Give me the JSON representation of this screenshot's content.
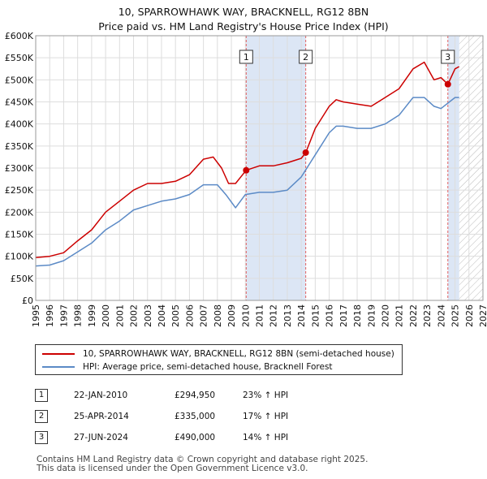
{
  "title_line1": "10, SPARROWHAWK WAY, BRACKNELL, RG12 8BN",
  "title_line2": "Price paid vs. HM Land Registry's House Price Index (HPI)",
  "legend": {
    "series1": "10, SPARROWHAWK WAY, BRACKNELL, RG12 8BN (semi-detached house)",
    "series2": "HPI: Average price, semi-detached house, Bracknell Forest"
  },
  "sales": [
    {
      "num": "1",
      "date": "22-JAN-2010",
      "price": "£294,950",
      "hpi": "23% ↑ HPI"
    },
    {
      "num": "2",
      "date": "25-APR-2014",
      "price": "£335,000",
      "hpi": "17% ↑ HPI"
    },
    {
      "num": "3",
      "date": "27-JUN-2024",
      "price": "£490,000",
      "hpi": "14% ↑ HPI"
    }
  ],
  "footer_line1": "Contains HM Land Registry data © Crown copyright and database right 2025.",
  "footer_line2": "This data is licensed under the Open Government Licence v3.0.",
  "colors": {
    "property": "#cc0000",
    "hpi": "#5b8ac6",
    "shade": "#dce6f5",
    "marker_line": "#e06060"
  },
  "chart_data": {
    "type": "line",
    "xlim": [
      1995,
      2027
    ],
    "ylim": [
      0,
      600000
    ],
    "x_ticks": [
      1995,
      1996,
      1997,
      1998,
      1999,
      2000,
      2001,
      2002,
      2003,
      2004,
      2005,
      2006,
      2007,
      2008,
      2009,
      2010,
      2011,
      2012,
      2013,
      2014,
      2015,
      2016,
      2017,
      2018,
      2019,
      2020,
      2021,
      2022,
      2023,
      2024,
      2025,
      2026,
      2027
    ],
    "y_ticks": [
      0,
      50000,
      100000,
      150000,
      200000,
      250000,
      300000,
      350000,
      400000,
      450000,
      500000,
      550000,
      600000
    ],
    "y_tick_labels": [
      "£0",
      "£50K",
      "£100K",
      "£150K",
      "£200K",
      "£250K",
      "£300K",
      "£350K",
      "£400K",
      "£450K",
      "£500K",
      "£550K",
      "£600K"
    ],
    "shaded_ranges": [
      [
        2010.06,
        2014.32
      ],
      [
        2024.49,
        2025.3
      ]
    ],
    "hatched_from": 2025.3,
    "series": [
      {
        "name": "10, SPARROWHAWK WAY, BRACKNELL, RG12 8BN (semi-detached house)",
        "x": [
          1995,
          1996,
          1997,
          1998,
          1999,
          2000,
          2001,
          2002,
          2003,
          2004,
          2005,
          2006,
          2007,
          2007.7,
          2008.3,
          2008.8,
          2009.3,
          2010.06,
          2011,
          2012,
          2013,
          2014,
          2014.32,
          2015,
          2016,
          2016.5,
          2017,
          2018,
          2019,
          2020,
          2021,
          2022,
          2022.8,
          2023.5,
          2024,
          2024.49,
          2025,
          2025.3
        ],
        "values": [
          97000,
          100000,
          108000,
          135000,
          160000,
          200000,
          225000,
          250000,
          265000,
          265000,
          270000,
          285000,
          320000,
          325000,
          300000,
          265000,
          265000,
          294950,
          305000,
          305000,
          312000,
          322000,
          335000,
          390000,
          440000,
          455000,
          450000,
          445000,
          440000,
          460000,
          480000,
          525000,
          540000,
          500000,
          505000,
          490000,
          525000,
          530000
        ]
      },
      {
        "name": "HPI: Average price, semi-detached house, Bracknell Forest",
        "x": [
          1995,
          1996,
          1997,
          1998,
          1999,
          2000,
          2001,
          2002,
          2003,
          2004,
          2005,
          2006,
          2007,
          2008,
          2008.6,
          2009.3,
          2010,
          2011,
          2012,
          2013,
          2014,
          2015,
          2016,
          2016.5,
          2017,
          2018,
          2019,
          2020,
          2021,
          2022,
          2022.8,
          2023.5,
          2024,
          2025,
          2025.3
        ],
        "values": [
          78000,
          80000,
          90000,
          110000,
          130000,
          160000,
          180000,
          205000,
          215000,
          225000,
          230000,
          240000,
          262000,
          262000,
          240000,
          210000,
          240000,
          245000,
          245000,
          250000,
          280000,
          330000,
          380000,
          395000,
          395000,
          390000,
          390000,
          400000,
          420000,
          460000,
          460000,
          440000,
          435000,
          460000,
          460000
        ]
      }
    ],
    "sale_points": [
      {
        "label": "1",
        "x": 2010.06,
        "y": 294950
      },
      {
        "label": "2",
        "x": 2014.32,
        "y": 335000
      },
      {
        "label": "3",
        "x": 2024.49,
        "y": 490000
      }
    ]
  }
}
